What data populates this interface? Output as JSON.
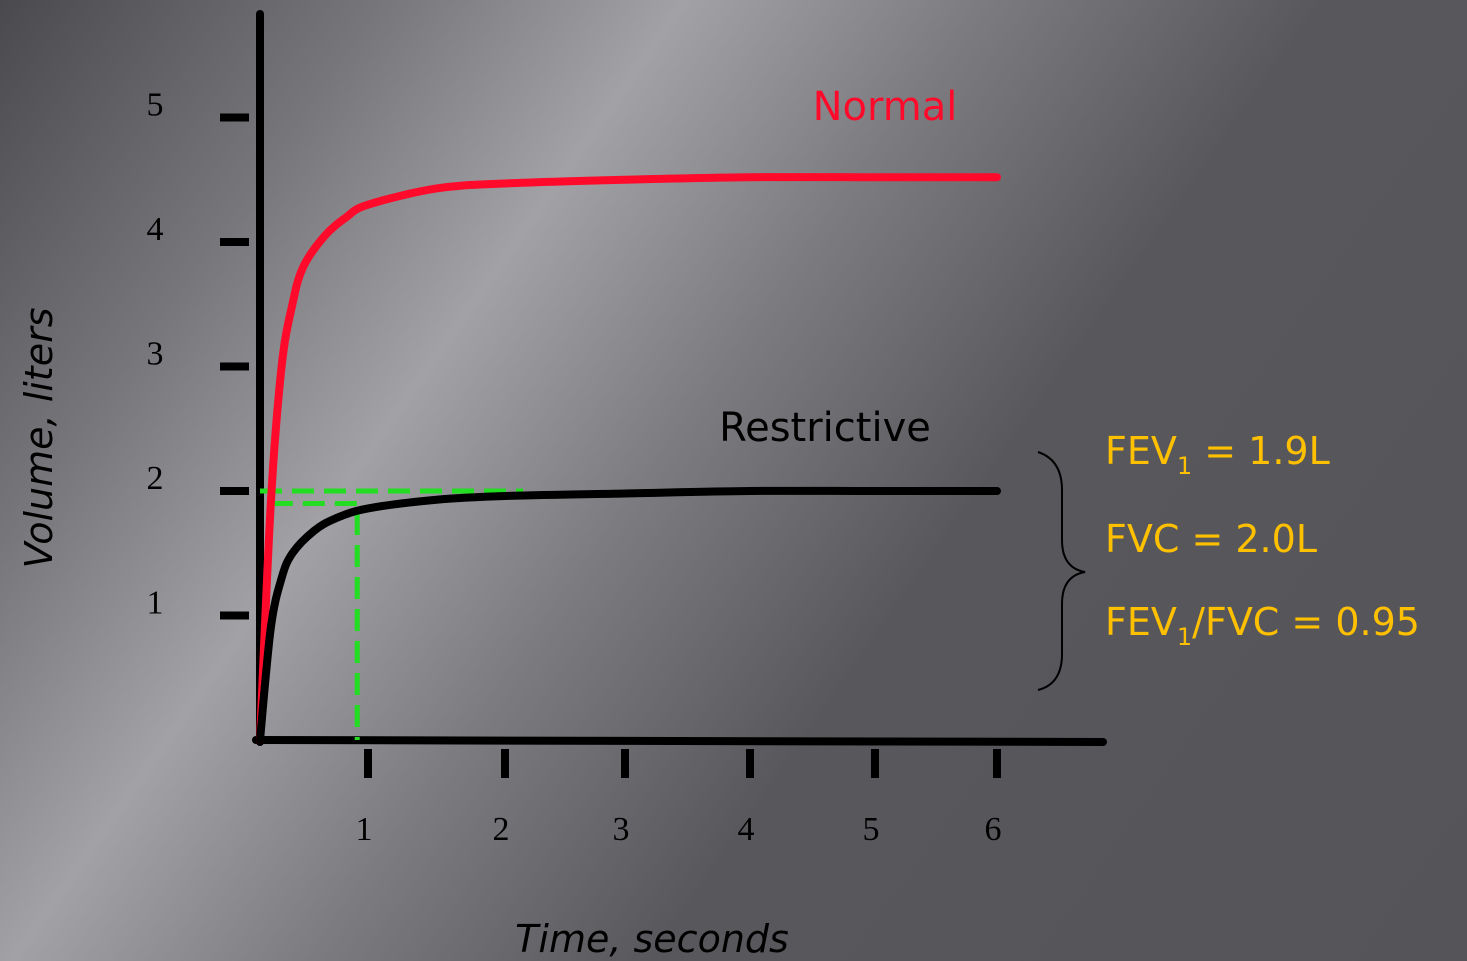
{
  "chart_data": {
    "type": "line",
    "title": "",
    "xlabel": "Time, seconds",
    "ylabel": "Volume, liters",
    "x_ticks": [
      "1",
      "2",
      "3",
      "4",
      "5",
      "6"
    ],
    "y_ticks": [
      "1",
      "2",
      "3",
      "4",
      "5"
    ],
    "xlim": [
      0,
      6
    ],
    "ylim": [
      0,
      5
    ],
    "grid": false,
    "series": [
      {
        "name": "Normal",
        "color": "#ff0a2a",
        "x": [
          0,
          0.1,
          0.2,
          0.3,
          0.4,
          0.6,
          0.8,
          1.0,
          1.5,
          2.0,
          3.0,
          4.0,
          5.0,
          6.0
        ],
        "y": [
          0,
          1.9,
          3.0,
          3.5,
          3.8,
          4.05,
          4.2,
          4.3,
          4.43,
          4.47,
          4.5,
          4.52,
          4.52,
          4.52
        ]
      },
      {
        "name": "Restrictive",
        "color": "#000000",
        "x": [
          0,
          0.1,
          0.2,
          0.3,
          0.5,
          0.7,
          1.0,
          1.5,
          2.0,
          3.0,
          4.0,
          5.0,
          6.0
        ],
        "y": [
          0,
          0.9,
          1.3,
          1.5,
          1.68,
          1.78,
          1.86,
          1.93,
          1.96,
          1.98,
          2.0,
          2.0,
          2.0
        ]
      }
    ],
    "reference_lines": [
      {
        "color": "#22dd22",
        "points": [
          [
            0,
            2.0
          ],
          [
            2.15,
            2.0
          ]
        ]
      },
      {
        "color": "#22dd22",
        "points": [
          [
            0.1,
            1.9
          ],
          [
            0.9,
            1.9
          ],
          [
            0.9,
            0
          ]
        ]
      }
    ],
    "annotations": [
      {
        "text": "FEV",
        "sub": "1",
        "suffix": " = 1.9L"
      },
      {
        "text": "FVC = 2.0L",
        "sub": "",
        "suffix": ""
      },
      {
        "text": "FEV",
        "sub": "1",
        "suffix": "/FVC = 0.95"
      }
    ]
  },
  "colors": {
    "annotation": "#ffc000",
    "normal": "#ff0a2a",
    "restrictive": "#000000",
    "reference": "#22dd22"
  }
}
